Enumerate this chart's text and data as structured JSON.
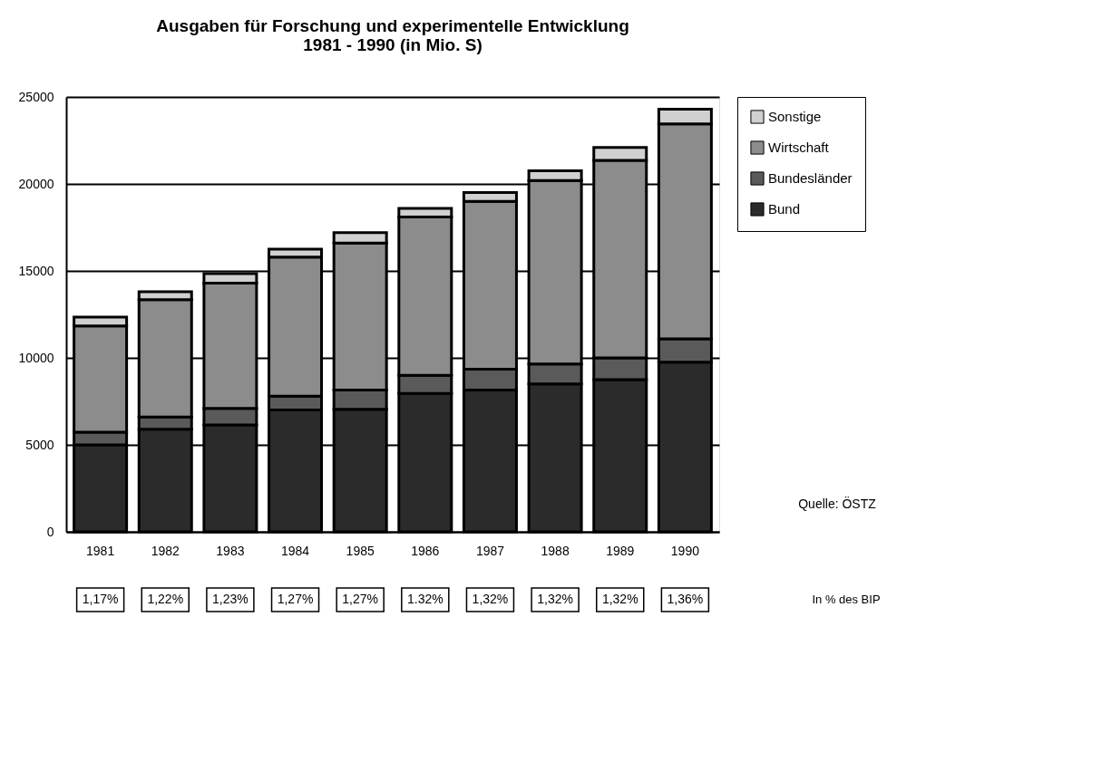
{
  "chart_data": {
    "type": "bar",
    "stacked": true,
    "title": "Ausgaben für Forschung und experimentelle Entwicklung\n1981 - 1990 (in Mio. S)",
    "categories": [
      "1981",
      "1982",
      "1983",
      "1984",
      "1985",
      "1986",
      "1987",
      "1988",
      "1989",
      "1990"
    ],
    "series": [
      {
        "name": "Bund",
        "color": "#2b2b2b",
        "values": [
          5000,
          5900,
          6150,
          7000,
          7050,
          7950,
          8150,
          8500,
          8750,
          9750
        ]
      },
      {
        "name": "Bundesländer",
        "color": "#5a5a5a",
        "values": [
          730,
          700,
          950,
          800,
          1100,
          1050,
          1200,
          1150,
          1250,
          1350
        ]
      },
      {
        "name": "Wirtschaft",
        "color": "#8c8c8c",
        "values": [
          6110,
          6750,
          7200,
          8000,
          8450,
          9100,
          9650,
          10550,
          11350,
          12350
        ]
      },
      {
        "name": "Sonstige",
        "color": "#d0d0d0",
        "values": [
          510,
          450,
          550,
          450,
          600,
          500,
          500,
          550,
          750,
          850
        ]
      }
    ],
    "ylim": [
      0,
      25000
    ],
    "yticks": [
      0,
      5000,
      10000,
      15000,
      20000,
      25000
    ],
    "grid": "y",
    "legend": "right",
    "annotations": [
      "1,17%",
      "1,22%",
      "1,23%",
      "1,27%",
      "1,27%",
      "1.32%",
      "1,32%",
      "1,32%",
      "1,32%",
      "1,36%",
      "In % des BIP",
      "Quelle: ÖSTZ"
    ]
  }
}
